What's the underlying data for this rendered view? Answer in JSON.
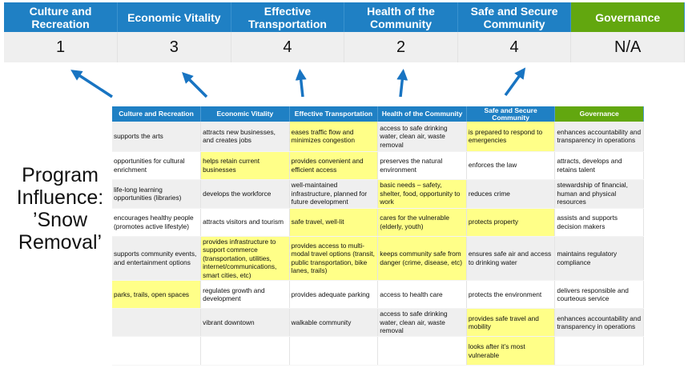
{
  "summary": {
    "headers": [
      "Culture and Recreation",
      "Economic Vitality",
      "Effective Transportation",
      "Health of the Community",
      "Safe and Secure Community",
      "Governance"
    ],
    "scores": [
      "1",
      "3",
      "4",
      "2",
      "4",
      "N/A"
    ]
  },
  "side_label": "Program Influence: ’Snow Removal’",
  "colors": {
    "header_blue": "#1f80c4",
    "governance_green": "#62a70f",
    "highlight_yellow": "#ffff88",
    "arrow_blue": "#1874c2"
  },
  "grid": {
    "headers": [
      "Culture and Recreation",
      "Economic Vitality",
      "Effective Transportation",
      "Health of the Community",
      "Safe and Secure Community",
      "Governance"
    ],
    "rows": [
      [
        {
          "t": "supports the arts"
        },
        {
          "t": "attracts new businesses, and creates jobs"
        },
        {
          "t": "eases traffic flow and minimizes congestion",
          "h": true
        },
        {
          "t": "access to safe drinking water, clean air, waste removal"
        },
        {
          "t": "is prepared to respond to emergencies",
          "h": true
        },
        {
          "t": "enhances accountability and transparency in operations"
        }
      ],
      [
        {
          "t": "opportunities for cultural enrichment"
        },
        {
          "t": "helps retain current businesses",
          "h": true
        },
        {
          "t": "provides convenient and efficient access",
          "h": true
        },
        {
          "t": "preserves the natural environment"
        },
        {
          "t": "enforces the law"
        },
        {
          "t": "attracts, develops and retains talent"
        }
      ],
      [
        {
          "t": "life-long learning opportunities (libraries)"
        },
        {
          "t": "develops the workforce"
        },
        {
          "t": "well-maintained infrastructure, planned for future development"
        },
        {
          "t": "basic needs – safety, shelter, food, opportunity to work",
          "h": true
        },
        {
          "t": "reduces crime"
        },
        {
          "t": "stewardship of financial, human and physical resources"
        }
      ],
      [
        {
          "t": "encourages healthy people (promotes active lifestyle)"
        },
        {
          "t": "attracts visitors and tourism"
        },
        {
          "t": "safe travel, well-lit",
          "h": true
        },
        {
          "t": "cares for the vulnerable (elderly, youth)",
          "h": true
        },
        {
          "t": "protects property",
          "h": true
        },
        {
          "t": "assists and supports decision makers"
        }
      ],
      [
        {
          "t": "supports community events, and entertainment options"
        },
        {
          "t": "provides infrastructure to support commerce (transportation, utilities, internet/communications, smart cities, etc)",
          "h": true
        },
        {
          "t": "provides access to multi-modal travel options (transit, public transportation, bike lanes, trails)",
          "h": true
        },
        {
          "t": "keeps community safe from danger (crime, disease, etc)",
          "h": true
        },
        {
          "t": "ensures safe air and access to drinking water"
        },
        {
          "t": "maintains regulatory compliance"
        }
      ],
      [
        {
          "t": "parks, trails, open spaces",
          "h": true
        },
        {
          "t": "regulates growth and development"
        },
        {
          "t": "provides adequate parking"
        },
        {
          "t": "access to health care"
        },
        {
          "t": "protects the environment"
        },
        {
          "t": "delivers responsible and courteous service"
        }
      ],
      [
        {
          "t": ""
        },
        {
          "t": "vibrant downtown"
        },
        {
          "t": "walkable community"
        },
        {
          "t": "access to safe drinking water, clean air, waste removal"
        },
        {
          "t": "provides safe travel and mobility",
          "h": true
        },
        {
          "t": "enhances accountability and transparency in operations"
        }
      ],
      [
        {
          "t": ""
        },
        {
          "t": ""
        },
        {
          "t": ""
        },
        {
          "t": ""
        },
        {
          "t": "looks after it’s most vulnerable",
          "h": true
        },
        {
          "t": ""
        }
      ]
    ]
  }
}
